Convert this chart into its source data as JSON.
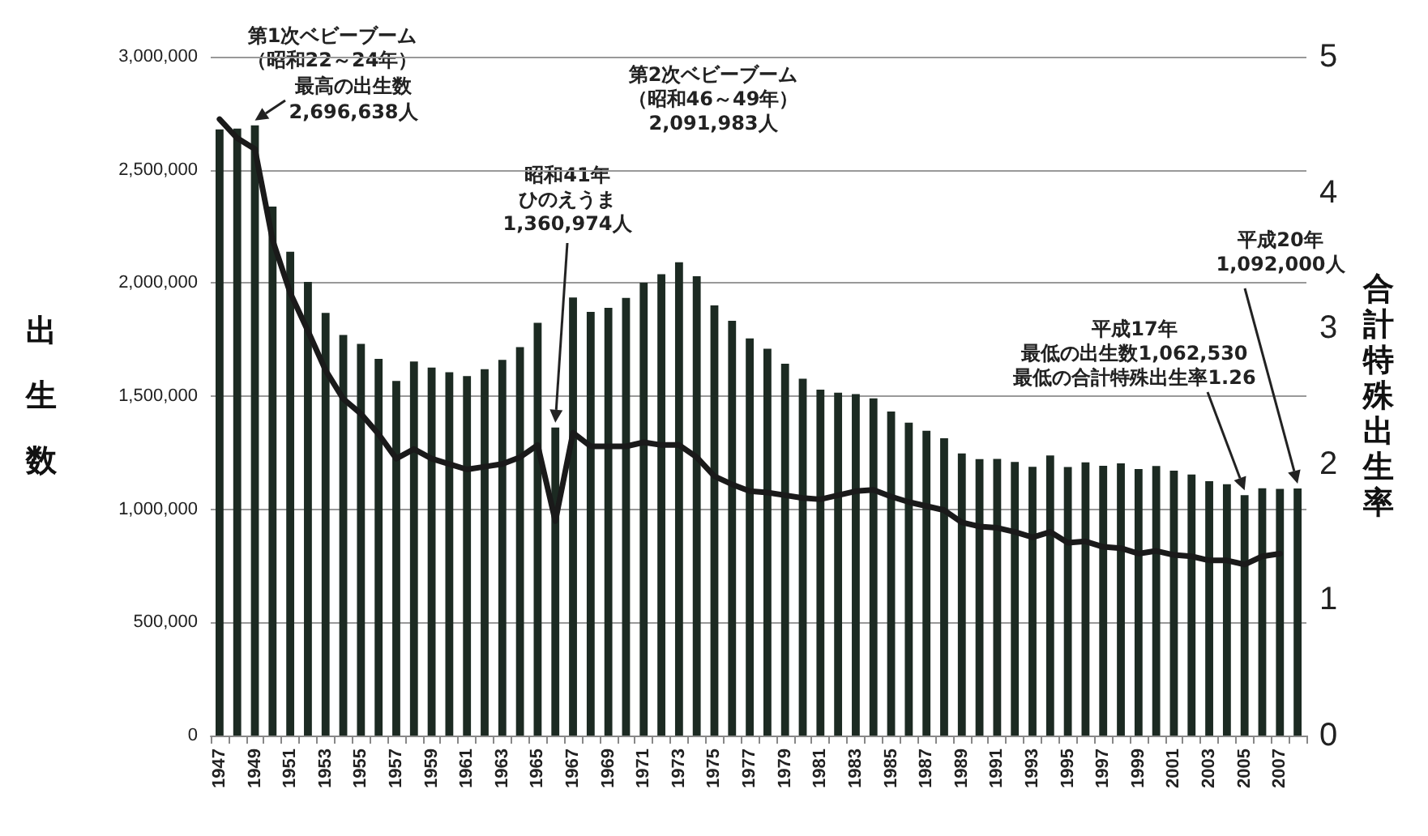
{
  "chart_data": {
    "type": "bar",
    "ylabel": "出生数",
    "y2label": "合計特殊出生率",
    "categories": [
      "1947",
      null,
      "1949",
      null,
      "1951",
      null,
      "1953",
      null,
      "1955",
      null,
      "1957",
      null,
      "1959",
      null,
      "1961",
      null,
      "1963",
      null,
      "1965",
      null,
      "1967",
      null,
      "1969",
      null,
      "1971",
      null,
      "1973",
      null,
      "1975",
      null,
      "1977",
      null,
      "1979",
      null,
      "1981",
      null,
      "1983",
      null,
      "1985",
      null,
      "1987",
      null,
      "1989",
      null,
      "1991",
      null,
      "1993",
      null,
      "1995",
      null,
      "1997",
      null,
      "1999",
      null,
      "2001",
      null,
      "2003",
      null,
      "2005",
      null,
      "2007",
      null
    ],
    "series": [
      {
        "color": "#1c2a22",
        "values": [
          2679000,
          2682000,
          2696638,
          2338000,
          2138000,
          2005000,
          1868000,
          1770000,
          1731000,
          1665000,
          1567000,
          1653000,
          1626000,
          1606000,
          1589000,
          1619000,
          1660000,
          1717000,
          1824000,
          1360974,
          1936000,
          1872000,
          1890000,
          1934000,
          2001000,
          2039000,
          2091983,
          2030000,
          1901000,
          1833000,
          1755000,
          1709000,
          1643000,
          1577000,
          1529000,
          1515000,
          1509000,
          1490000,
          1432000,
          1383000,
          1347000,
          1314000,
          1247000,
          1222000,
          1223000,
          1209000,
          1188000,
          1238000,
          1187000,
          1207000,
          1192000,
          1203000,
          1178000,
          1191000,
          1171000,
          1154000,
          1124000,
          1111000,
          1062530,
          1093000,
          1090000,
          1092000
        ]
      },
      {
        "type": "line",
        "axis": "y2",
        "color": "#1a1a1a",
        "marker": "none",
        "line_style": "solid",
        "values": [
          4.54,
          4.4,
          4.32,
          3.65,
          3.26,
          2.98,
          2.69,
          2.48,
          2.37,
          2.22,
          2.04,
          2.11,
          2.04,
          2.0,
          1.96,
          1.98,
          2.0,
          2.05,
          2.14,
          1.58,
          2.23,
          2.13,
          2.13,
          2.13,
          2.16,
          2.14,
          2.14,
          2.05,
          1.91,
          1.85,
          1.8,
          1.79,
          1.77,
          1.75,
          1.74,
          1.77,
          1.8,
          1.81,
          1.76,
          1.72,
          1.69,
          1.66,
          1.57,
          1.54,
          1.53,
          1.5,
          1.46,
          1.5,
          1.42,
          1.43,
          1.39,
          1.38,
          1.34,
          1.36,
          1.33,
          1.32,
          1.29,
          1.29,
          1.26,
          1.32,
          1.34,
          null
        ]
      }
    ],
    "ylim": [
      0,
      3000000
    ],
    "yticks": [
      0,
      {
        "value": 500000,
        "label": "500,000"
      },
      {
        "value": 1000000,
        "label": "1,000,000"
      },
      {
        "value": 1500000,
        "label": "1,500,000"
      },
      {
        "value": 2000000,
        "label": "2,000,000"
      },
      {
        "value": 2500000,
        "label": "2,500,000"
      },
      {
        "value": 3000000,
        "label": "3,000,000"
      }
    ],
    "y2lim": [
      0,
      5
    ],
    "y2ticks": [
      0,
      1,
      2,
      3,
      4,
      5
    ],
    "grid": "y",
    "annotations": [
      "第1次ベビーブーム",
      "（昭和22～24年）",
      "最高の出生数",
      "2,696,638人",
      "第2次ベビーブーム",
      "（昭和46～49年）",
      "2,091,983人",
      "昭和41年",
      "ひのえうま",
      "1,360,974人",
      "平成17年",
      "最低の出生数1,062,530",
      "最低の合計特殊出生率1.26",
      "平成20年",
      "1,092,000人"
    ]
  }
}
